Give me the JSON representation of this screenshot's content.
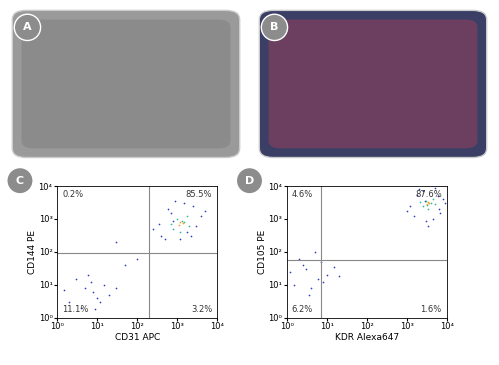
{
  "images": [
    {
      "panel": "A"
    },
    {
      "panel": "B"
    }
  ],
  "chart_data": [
    {
      "type": "scatter",
      "panel": "C",
      "x_label": "CD31 APC",
      "y_label": "CD144 PE",
      "log": true,
      "xlim": [
        1,
        10000
      ],
      "ylim": [
        1,
        10000
      ],
      "xticks": [
        {
          "value": 1,
          "label": "10⁰"
        },
        {
          "value": 10,
          "label": "10¹"
        },
        {
          "value": 100,
          "label": "10²"
        },
        {
          "value": 1000,
          "label": "10³"
        },
        {
          "value": 10000,
          "label": "10⁴"
        }
      ],
      "yticks": [
        {
          "value": 1,
          "label": "10⁰"
        },
        {
          "value": 10,
          "label": "10¹"
        },
        {
          "value": 100,
          "label": "10²"
        },
        {
          "value": 1000,
          "label": "10³"
        },
        {
          "value": 10000,
          "label": "10⁴"
        }
      ],
      "gates": {
        "x": 200,
        "y": 90
      },
      "quadrants": {
        "upper left": {
          "value": 0.2,
          "label": "0.2%"
        },
        "upper right": {
          "value": 85.5,
          "label": "85.5%"
        },
        "lower left": {
          "value": 11.1,
          "label": "11.1%"
        },
        "lower right": {
          "value": 3.2,
          "label": "3.2%"
        }
      },
      "marker": "dot",
      "series": [
        {
          "color": "#2b3fc4",
          "x": [
            400,
            2500,
            700,
            5000,
            1200,
            350,
            3000,
            900,
            1800,
            600,
            4000,
            250,
            1500,
            800,
            2200,
            500,
            2,
            5,
            10,
            3,
            8,
            15,
            4,
            20,
            6,
            12,
            1.5,
            30,
            7,
            9,
            50,
            100,
            30
          ],
          "values": [
            300,
            2500,
            1500,
            1800,
            250,
            700,
            600,
            3500,
            400,
            2000,
            1200,
            500,
            3000,
            900,
            300,
            250,
            3,
            8,
            4,
            15,
            6,
            10,
            2,
            5,
            20,
            3,
            7,
            8,
            12,
            1.8,
            40,
            60,
            200
          ]
        },
        {
          "color": "#2fb89a",
          "x": [
            800,
            1500,
            1000,
            2000,
            1200,
            700,
            1800,
            1300
          ],
          "values": [
            500,
            800,
            1000,
            600,
            400,
            700,
            1200,
            900
          ]
        },
        {
          "color": "#f0a020",
          "x": [
            1100,
            1400,
            1200
          ],
          "values": [
            650,
            750,
            800
          ]
        }
      ]
    },
    {
      "type": "scatter",
      "panel": "D",
      "x_label": "KDR Alexa647",
      "y_label": "CD105 PE",
      "log": true,
      "xlim": [
        1,
        10000
      ],
      "ylim": [
        1,
        10000
      ],
      "xticks": [
        {
          "value": 1,
          "label": "10⁰"
        },
        {
          "value": 10,
          "label": "10¹"
        },
        {
          "value": 100,
          "label": "10²"
        },
        {
          "value": 1000,
          "label": "10³"
        },
        {
          "value": 10000,
          "label": "10⁴"
        }
      ],
      "yticks": [
        {
          "value": 1,
          "label": "10⁰"
        },
        {
          "value": 10,
          "label": "10¹"
        },
        {
          "value": 100,
          "label": "10²"
        },
        {
          "value": 1000,
          "label": "10³"
        },
        {
          "value": 10000,
          "label": "10⁴"
        }
      ],
      "gates": {
        "x": 7,
        "y": 55
      },
      "quadrants": {
        "upper left": {
          "value": 4.6,
          "label": "4.6%"
        },
        "upper right": {
          "value": 87.6,
          "label": "87.6%"
        },
        "lower left": {
          "value": 6.2,
          "label": "6.2%"
        },
        "lower right": {
          "value": 1.6,
          "label": "1.6%"
        }
      },
      "marker": "dot",
      "series": [
        {
          "color": "#2b3fc4",
          "x": [
            1500,
            6000,
            2500,
            9000,
            3000,
            1200,
            7000,
            2000,
            4500,
            1800,
            8000,
            3500,
            1000,
            5000,
            2800,
            6500,
            1.5,
            3,
            6,
            2,
            4,
            10,
            2.5,
            8,
            1.2,
            5,
            3.5,
            15,
            7,
            20
          ],
          "values": [
            1200,
            5000,
            7000,
            3000,
            900,
            2500,
            1500,
            8000,
            1000,
            5500,
            4000,
            600,
            1800,
            9000,
            3500,
            2000,
            10,
            30,
            15,
            60,
            8,
            20,
            40,
            12,
            25,
            100,
            5,
            35,
            50,
            18
          ]
        },
        {
          "color": "#2fb89a",
          "x": [
            2500,
            4000,
            3000,
            5000,
            3500,
            2200,
            4500,
            3200
          ],
          "values": [
            2500,
            3000,
            3500,
            2800,
            2000,
            3200,
            4200,
            2600
          ]
        },
        {
          "color": "#f0a020",
          "x": [
            3300,
            3700,
            3500
          ],
          "values": [
            2900,
            3100,
            3300
          ]
        }
      ]
    }
  ]
}
